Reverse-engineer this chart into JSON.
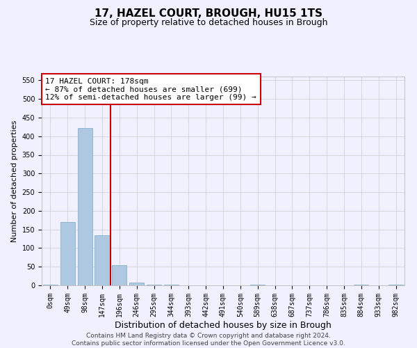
{
  "title": "17, HAZEL COURT, BROUGH, HU15 1TS",
  "subtitle": "Size of property relative to detached houses in Brough",
  "xlabel": "Distribution of detached houses by size in Brough",
  "ylabel": "Number of detached properties",
  "footer_line1": "Contains HM Land Registry data © Crown copyright and database right 2024.",
  "footer_line2": "Contains public sector information licensed under the Open Government Licence v3.0.",
  "annotation_title": "17 HAZEL COURT: 178sqm",
  "annotation_line2": "← 87% of detached houses are smaller (699)",
  "annotation_line3": "12% of semi-detached houses are larger (99) →",
  "categories": [
    "0sqm",
    "49sqm",
    "98sqm",
    "147sqm",
    "196sqm",
    "246sqm",
    "295sqm",
    "344sqm",
    "393sqm",
    "442sqm",
    "491sqm",
    "540sqm",
    "589sqm",
    "638sqm",
    "687sqm",
    "737sqm",
    "786sqm",
    "835sqm",
    "884sqm",
    "933sqm",
    "982sqm"
  ],
  "values": [
    2,
    170,
    422,
    135,
    55,
    8,
    1,
    2,
    0,
    0,
    0,
    0,
    2,
    0,
    0,
    0,
    0,
    0,
    2,
    0,
    1
  ],
  "bar_color": "#adc8e0",
  "bar_edge_color": "#7aa8c8",
  "vline_color": "#cc0000",
  "vline_x": 3.5,
  "annotation_box_color": "#ffffff",
  "annotation_box_edge": "#cc0000",
  "grid_color": "#cccccc",
  "ylim": [
    0,
    560
  ],
  "yticks": [
    0,
    50,
    100,
    150,
    200,
    250,
    300,
    350,
    400,
    450,
    500,
    550
  ],
  "bg_color": "#f0f0ff",
  "title_fontsize": 11,
  "subtitle_fontsize": 9,
  "xlabel_fontsize": 9,
  "ylabel_fontsize": 8,
  "tick_fontsize": 7,
  "annotation_fontsize": 8,
  "footer_fontsize": 6.5
}
